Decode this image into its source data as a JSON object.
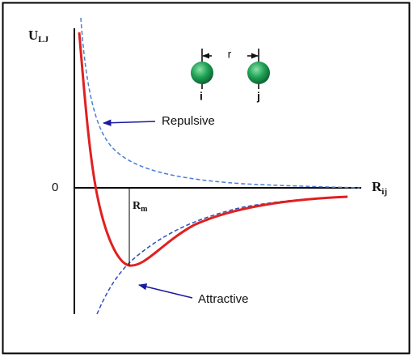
{
  "axis_y": {
    "label": "U",
    "subscript": "LJ"
  },
  "axis_x": {
    "label": "R",
    "subscript": "ij"
  },
  "zero_label": "0",
  "minimum": {
    "label": "R",
    "subscript": "m"
  },
  "atoms": {
    "distance_label": "r",
    "left": "i",
    "right": "j"
  },
  "annotations": {
    "repulsive": "Repulsive",
    "attractive": "Attractive"
  }
}
